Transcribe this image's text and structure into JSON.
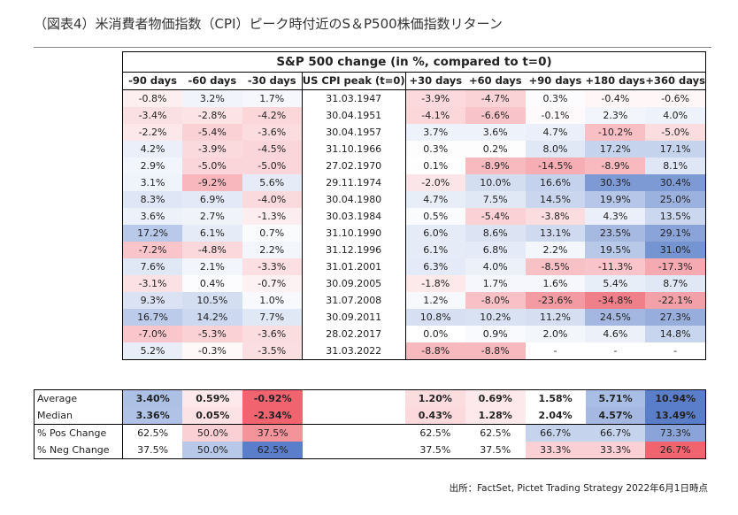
{
  "title": "（図表4）米消費者物価指数（CPI）ピーク時付近のS＆P500株価指数リターン",
  "table": {
    "super_header": "S&P 500 change (in %, compared to t=0)",
    "headers": [
      "-90 days",
      "-60 days",
      "-30 days",
      "US CPI peak (t=0)",
      "+30 days",
      "+60 days",
      "+90 days",
      "+180 days",
      "+360 days"
    ],
    "rows": [
      [
        "-0.8%",
        "3.2%",
        "1.7%",
        "31.03.1947",
        "-3.9%",
        "-4.7%",
        "0.3%",
        "-0.4%",
        "-0.6%"
      ],
      [
        "-3.4%",
        "-2.8%",
        "-4.2%",
        "30.04.1951",
        "-4.1%",
        "-6.6%",
        "-0.1%",
        "2.3%",
        "4.0%"
      ],
      [
        "-2.2%",
        "-5.4%",
        "-3.6%",
        "30.04.1957",
        "3.7%",
        "3.6%",
        "4.7%",
        "-10.2%",
        "-5.0%"
      ],
      [
        "4.2%",
        "-3.9%",
        "-4.5%",
        "31.10.1966",
        "0.3%",
        "0.2%",
        "8.0%",
        "17.2%",
        "17.1%"
      ],
      [
        "2.9%",
        "-5.0%",
        "-5.0%",
        "27.02.1970",
        "0.1%",
        "-8.9%",
        "-14.5%",
        "-8.9%",
        "8.1%"
      ],
      [
        "3.1%",
        "-9.2%",
        "5.6%",
        "29.11.1974",
        "-2.0%",
        "10.0%",
        "16.6%",
        "30.3%",
        "30.4%"
      ],
      [
        "8.3%",
        "6.9%",
        "-4.0%",
        "30.04.1980",
        "4.7%",
        "7.5%",
        "14.5%",
        "19.9%",
        "25.0%"
      ],
      [
        "3.6%",
        "2.7%",
        "-1.3%",
        "30.03.1984",
        "0.5%",
        "-5.4%",
        "-3.8%",
        "4.3%",
        "13.5%"
      ],
      [
        "17.2%",
        "6.1%",
        "0.7%",
        "31.10.1990",
        "6.0%",
        "8.6%",
        "13.1%",
        "23.5%",
        "29.1%"
      ],
      [
        "-7.2%",
        "-4.8%",
        "2.2%",
        "31.12.1996",
        "6.1%",
        "6.8%",
        "2.2%",
        "19.5%",
        "31.0%"
      ],
      [
        "7.6%",
        "2.1%",
        "-3.3%",
        "31.01.2001",
        "6.3%",
        "4.0%",
        "-8.5%",
        "-11.3%",
        "-17.3%"
      ],
      [
        "-3.1%",
        "0.4%",
        "-0.7%",
        "30.09.2005",
        "-1.8%",
        "1.7%",
        "1.6%",
        "5.4%",
        "8.7%"
      ],
      [
        "9.3%",
        "10.5%",
        "1.0%",
        "31.07.2008",
        "1.2%",
        "-8.0%",
        "-23.6%",
        "-34.8%",
        "-22.1%"
      ],
      [
        "16.7%",
        "14.2%",
        "7.7%",
        "30.09.2011",
        "10.8%",
        "10.2%",
        "11.2%",
        "24.5%",
        "27.3%"
      ],
      [
        "-7.0%",
        "-5.3%",
        "-3.6%",
        "28.02.2017",
        "0.0%",
        "0.9%",
        "2.0%",
        "4.6%",
        "14.8%"
      ],
      [
        "5.2%",
        "-0.3%",
        "-3.5%",
        "31.03.2022",
        "-8.8%",
        "-8.8%",
        "-",
        "-",
        "-"
      ]
    ],
    "row_colors": [
      [
        "#fdeff0",
        "#f1f4fb",
        "#f5f7fc",
        "",
        "#fbd9dc",
        "#fad3d7",
        "#fcfcfe",
        "#fef6f7",
        "#fef6f7"
      ],
      [
        "#fbe0e3",
        "#fce3e6",
        "#fbd7da",
        "",
        "#fbd7da",
        "#f9c4c9",
        "#fefafb",
        "#f2f5fb",
        "#eef2fa"
      ],
      [
        "#fce7ea",
        "#fad1d5",
        "#fbdde0",
        "",
        "#eef2fa",
        "#eef2fa",
        "#eaeff9",
        "#f8bfc4",
        "#fbdcdf"
      ],
      [
        "#eaeff9",
        "#fbdade",
        "#fad5d9",
        "",
        "#fdfdfe",
        "#fdfdfe",
        "#e0e7f5",
        "#c5d3ed",
        "#c5d3ed"
      ],
      [
        "#f2f5fb",
        "#fad5d9",
        "#fad5d9",
        "",
        "#fefefe",
        "#f8b9bf",
        "#f6aeb4",
        "#f8b9bf",
        "#dfe6f5"
      ],
      [
        "#eff3fa",
        "#f8b7bc",
        "#e6ecf7",
        "",
        "#fce5e8",
        "#d4def1",
        "#c4d2ed",
        "#7d9ad5",
        "#7d9ad5"
      ],
      [
        "#dfe6f5",
        "#e3e9f6",
        "#fbdadd",
        "",
        "#e8eef8",
        "#e1e8f5",
        "#c9d6ee",
        "#b5c6e8",
        "#9bb1de"
      ],
      [
        "#edf1f9",
        "#f0f3fa",
        "#fceef0",
        "",
        "#fafbfd",
        "#fad1d5",
        "#fbdde0",
        "#ebeff9",
        "#cbd7ef"
      ],
      [
        "#b8c9e9",
        "#e5ebf7",
        "#fafbfd",
        "",
        "#e6ecf7",
        "#dce4f4",
        "#cfdaf0",
        "#a6b9e1",
        "#8aa4d9"
      ],
      [
        "#fac5ca",
        "#fbd8db",
        "#f3f6fb",
        "",
        "#e5ebf7",
        "#e4eaf7",
        "#f3f6fb",
        "#b7c8e9",
        "#7494d2"
      ],
      [
        "#e0e7f5",
        "#f2f5fb",
        "#fcdfe2",
        "",
        "#e4eaf7",
        "#ebf0f9",
        "#f8c1c6",
        "#f9c5ca",
        "#f5a9b0"
      ],
      [
        "#fce1e4",
        "#fcfcfe",
        "#fdf2f3",
        "",
        "#fde8ea",
        "#f5f7fc",
        "#f5f7fc",
        "#e8eef8",
        "#e0e7f5"
      ],
      [
        "#dae2f3",
        "#d4def1",
        "#f8f9fd",
        "",
        "#f7f9fc",
        "#f9c0c5",
        "#f39aa2",
        "#ef7f89",
        "#f3a1a8"
      ],
      [
        "#bccbea",
        "#ccd8ef",
        "#e0e7f5",
        "",
        "#d6e0f2",
        "#d9e2f3",
        "#d5dff1",
        "#a3b7e0",
        "#97aedd"
      ],
      [
        "#fac6cb",
        "#fad2d6",
        "#fbdde0",
        "",
        "#ffffff",
        "#f9fafd",
        "#f3f6fb",
        "#ebf0f9",
        "#c8d5ee"
      ],
      [
        "#e8edf8",
        "#fef8f9",
        "#fbdee1",
        "",
        "#f8b9be",
        "#f8b9be",
        "",
        "",
        ""
      ]
    ]
  },
  "summary": {
    "rows": [
      {
        "label": "Average",
        "values": [
          "3.40%",
          "0.59%",
          "-0.92%",
          "",
          "1.20%",
          "0.69%",
          "1.58%",
          "5.71%",
          "10.94%"
        ],
        "colors": [
          "#adc1e5",
          "#fde9eb",
          "#f0636f",
          "",
          "#fbdde0",
          "#fde9eb",
          "#ffffff",
          "#a9bee4",
          "#5a7ec9"
        ]
      },
      {
        "label": "Median",
        "values": [
          "3.36%",
          "0.05%",
          "-2.34%",
          "",
          "0.43%",
          "1.28%",
          "2.04%",
          "4.57%",
          "13.49%"
        ],
        "colors": [
          "#b0c3e6",
          "#fde2e5",
          "#f0636f",
          "",
          "#fbd9dc",
          "#fde9eb",
          "#ffffff",
          "#a4b8e1",
          "#5a7ec9"
        ]
      },
      {
        "label": "% Pos Change",
        "values": [
          "62.5%",
          "50.0%",
          "37.5%",
          "",
          "62.5%",
          "62.5%",
          "66.7%",
          "66.7%",
          "73.3%"
        ],
        "colors": [
          "#ffffff",
          "#fad0d4",
          "#f5939b",
          "",
          "#ffffff",
          "#ffffff",
          "#c5d3ed",
          "#c5d3ed",
          "#8aa4d9"
        ]
      },
      {
        "label": "% Neg Change",
        "values": [
          "37.5%",
          "50.0%",
          "62.5%",
          "",
          "37.5%",
          "37.5%",
          "33.3%",
          "33.3%",
          "26.7%"
        ],
        "colors": [
          "#ffffff",
          "#b7c8e9",
          "#5a7ec9",
          "",
          "#ffffff",
          "#ffffff",
          "#fad0d4",
          "#fad0d4",
          "#f0636f"
        ]
      }
    ]
  },
  "source": "出所：FactSet, Pictet Trading Strategy  2022年6月1日時点"
}
